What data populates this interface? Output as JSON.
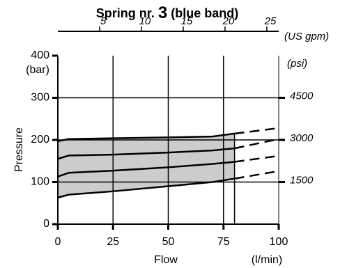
{
  "chart_data": {
    "type": "line",
    "title_parts": [
      "Spring nr.",
      "3",
      "(blue band)"
    ],
    "x_label": "Flow",
    "x_unit": "(l/min)",
    "y_label": "Pressure",
    "y_unit": "(bar)",
    "x2_unit": "(US gpm)",
    "y2_unit": "(psi)",
    "xlim": [
      0,
      100
    ],
    "xticks": [
      0,
      25,
      50,
      75,
      100
    ],
    "ylim": [
      0,
      400
    ],
    "yticks": [
      0,
      100,
      200,
      300,
      400
    ],
    "x2lim": [
      0,
      26.42
    ],
    "x2ticks": [
      5,
      10,
      15,
      20,
      25
    ],
    "y2lim": [
      0,
      6000
    ],
    "y2ticks": [
      1500,
      3000,
      4500
    ],
    "grid": true,
    "band_color": "#cccccc",
    "vline_x": 80,
    "series": [
      {
        "x": [
          0,
          5,
          25,
          50,
          70,
          80
        ],
        "values": [
          197,
          202,
          204,
          206,
          208,
          215
        ],
        "color": "#000000",
        "dashed": false
      },
      {
        "x": [
          0,
          5,
          25,
          50,
          70,
          80
        ],
        "values": [
          155,
          163,
          165,
          170,
          175,
          180
        ],
        "color": "#000000",
        "dashed": false
      },
      {
        "x": [
          0,
          5,
          25,
          50,
          70,
          80
        ],
        "values": [
          113,
          122,
          127,
          135,
          143,
          148
        ],
        "color": "#000000",
        "dashed": false
      },
      {
        "x": [
          0,
          5,
          25,
          50,
          70,
          80
        ],
        "values": [
          63,
          70,
          78,
          90,
          100,
          108
        ],
        "color": "#000000",
        "dashed": false
      },
      {
        "x": [
          80,
          100
        ],
        "values": [
          215,
          228
        ],
        "color": "#000000",
        "dashed": true
      },
      {
        "x": [
          80,
          100
        ],
        "values": [
          180,
          202
        ],
        "color": "#000000",
        "dashed": true
      },
      {
        "x": [
          80,
          100
        ],
        "values": [
          148,
          162
        ],
        "color": "#000000",
        "dashed": true
      },
      {
        "x": [
          80,
          100
        ],
        "values": [
          108,
          126
        ],
        "color": "#000000",
        "dashed": true
      }
    ]
  }
}
